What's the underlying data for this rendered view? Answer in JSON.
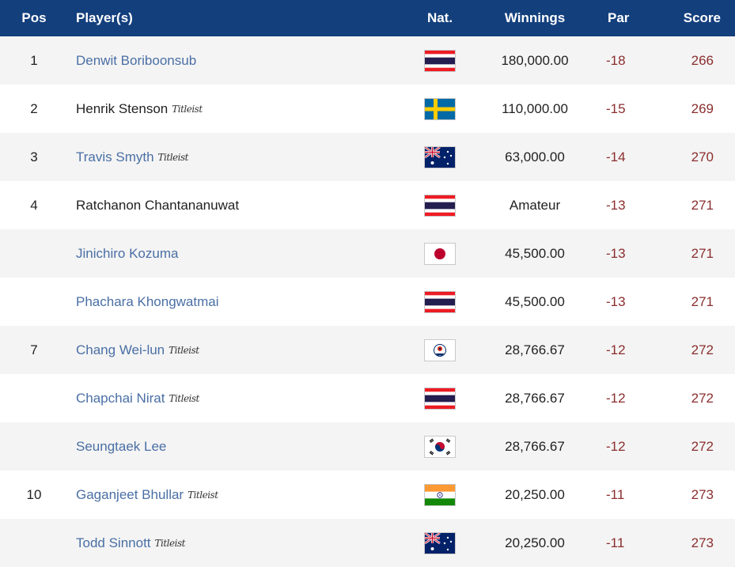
{
  "headers": {
    "pos": "Pos",
    "player": "Player(s)",
    "nat": "Nat.",
    "winnings": "Winnings",
    "par": "Par",
    "score": "Score"
  },
  "rows": [
    {
      "pos": "1",
      "name": "Denwit Boriboonsub",
      "link": true,
      "brand": "",
      "flag": "thailand",
      "winnings": "180,000.00",
      "par": "-18",
      "score": "266"
    },
    {
      "pos": "2",
      "name": "Henrik Stenson",
      "link": false,
      "brand": "Titleist",
      "flag": "sweden",
      "winnings": "110,000.00",
      "par": "-15",
      "score": "269"
    },
    {
      "pos": "3",
      "name": "Travis Smyth",
      "link": true,
      "brand": "Titleist",
      "flag": "australia",
      "winnings": "63,000.00",
      "par": "-14",
      "score": "270"
    },
    {
      "pos": "4",
      "name": "Ratchanon Chantananuwat",
      "link": false,
      "brand": "",
      "flag": "thailand",
      "winnings": "Amateur",
      "par": "-13",
      "score": "271"
    },
    {
      "pos": "",
      "name": "Jinichiro Kozuma",
      "link": true,
      "brand": "",
      "flag": "japan",
      "winnings": "45,500.00",
      "par": "-13",
      "score": "271"
    },
    {
      "pos": "",
      "name": "Phachara Khongwatmai",
      "link": true,
      "brand": "",
      "flag": "thailand",
      "winnings": "45,500.00",
      "par": "-13",
      "score": "271"
    },
    {
      "pos": "7",
      "name": "Chang Wei-lun",
      "link": true,
      "brand": "Titleist",
      "flag": "chinese-taipei",
      "winnings": "28,766.67",
      "par": "-12",
      "score": "272"
    },
    {
      "pos": "",
      "name": "Chapchai Nirat",
      "link": true,
      "brand": "Titleist",
      "flag": "thailand",
      "winnings": "28,766.67",
      "par": "-12",
      "score": "272"
    },
    {
      "pos": "",
      "name": "Seungtaek Lee",
      "link": true,
      "brand": "",
      "flag": "south-korea",
      "winnings": "28,766.67",
      "par": "-12",
      "score": "272"
    },
    {
      "pos": "10",
      "name": "Gaganjeet Bhullar",
      "link": true,
      "brand": "Titleist",
      "flag": "india",
      "winnings": "20,250.00",
      "par": "-11",
      "score": "273"
    },
    {
      "pos": "",
      "name": "Todd Sinnott",
      "link": true,
      "brand": "Titleist",
      "flag": "australia",
      "winnings": "20,250.00",
      "par": "-11",
      "score": "273"
    }
  ],
  "colors": {
    "header_bg": "#133f7d",
    "link": "#4a6fa5",
    "score": "#8b2e2e",
    "row_alt": "#f4f4f4"
  }
}
